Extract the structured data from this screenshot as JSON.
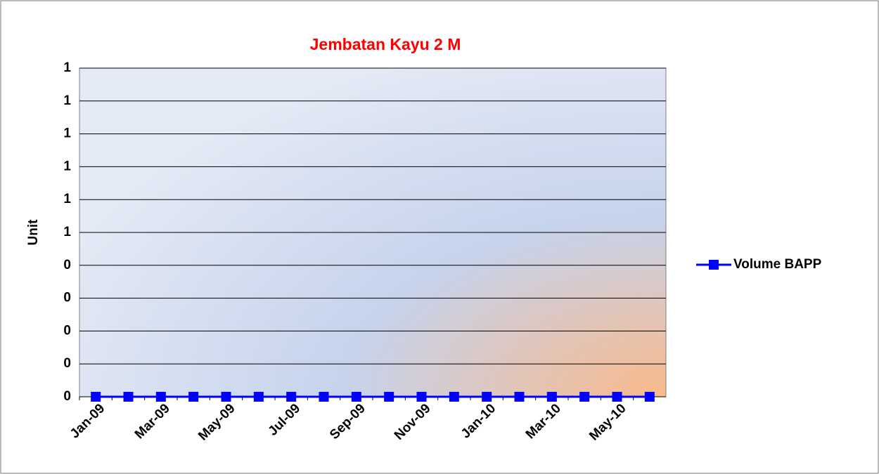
{
  "chart_data": {
    "type": "line",
    "title": "Jembatan Kayu 2 M",
    "y_label": "Unit",
    "categories": [
      "Jan-09",
      null,
      "Mar-09",
      null,
      "May-09",
      null,
      "Jul-09",
      null,
      "Sep-09",
      null,
      "Nov-09",
      null,
      "Jan-10",
      null,
      "Mar-10",
      null,
      "May-10",
      null
    ],
    "series": [
      {
        "name": "Volume BAPP",
        "color": "#0000ff",
        "values": [
          0,
          0,
          0,
          0,
          0,
          0,
          0,
          0,
          0,
          0,
          0,
          0,
          0,
          0,
          0,
          0,
          0,
          0
        ]
      }
    ],
    "ylim": [
      0,
      1
    ],
    "yticks": [
      0,
      {
        "value": 0.1,
        "label": "0"
      },
      {
        "value": 0.2,
        "label": "0"
      },
      {
        "value": 0.3,
        "label": "0"
      },
      {
        "value": 0.4,
        "label": "0"
      },
      {
        "value": 0.5,
        "label": "1"
      },
      {
        "value": 0.6,
        "label": "1"
      },
      {
        "value": 0.7,
        "label": "1"
      },
      {
        "value": 0.8,
        "label": "1"
      },
      {
        "value": 0.9,
        "label": "1"
      },
      {
        "value": 1,
        "label": "1"
      }
    ],
    "grid": true,
    "legend": "right"
  }
}
